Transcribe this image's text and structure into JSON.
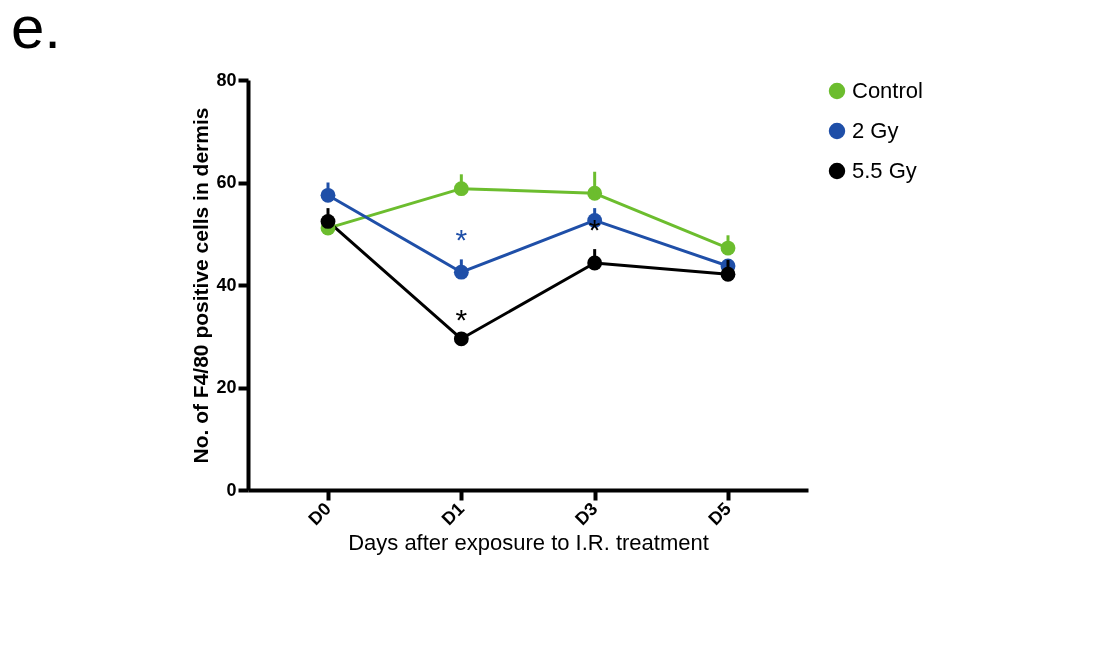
{
  "chart_data": {
    "type": "line",
    "title": "e.",
    "xlabel": "Days after exposure to I.R. treatment",
    "ylabel": "No. of F4/80 positive cells in dermis",
    "categories": [
      "D0",
      "D1",
      "D3",
      "D5"
    ],
    "series": [
      {
        "name": "Control",
        "color": "#6cbd2e",
        "values": [
          51.1,
          58.8,
          57.9,
          47.2
        ],
        "errors": [
          null,
          [
            58.8,
            61.6
          ],
          [
            57.9,
            62.1
          ],
          [
            47.2,
            49.7
          ]
        ]
      },
      {
        "name": "2 Gy",
        "color": "#1f4fa8",
        "values": [
          57.5,
          42.5,
          52.6,
          43.7
        ],
        "errors": [
          [
            57.5,
            60.0
          ],
          [
            42.5,
            45.0
          ],
          [
            52.6,
            55.0
          ],
          null
        ]
      },
      {
        "name": "5.5 Gy",
        "color": "#000000",
        "values": [
          52.4,
          29.5,
          44.3,
          42.1
        ],
        "errors": [
          [
            52.4,
            55.0
          ],
          null,
          [
            44.3,
            47.0
          ],
          [
            42.1,
            44.9
          ]
        ]
      }
    ],
    "ylim": [
      0,
      80
    ],
    "yticks": [
      0,
      20,
      40,
      60,
      80
    ],
    "grid": false,
    "legend": "right",
    "marker": "circle",
    "line_style": "solid",
    "annotations": [
      {
        "text": "*",
        "x": "D1",
        "y": 42.5
      },
      {
        "text": "*",
        "x": "D1",
        "y": 29.5
      },
      {
        "text": "*",
        "x": "D3",
        "y": 44.3
      }
    ]
  }
}
